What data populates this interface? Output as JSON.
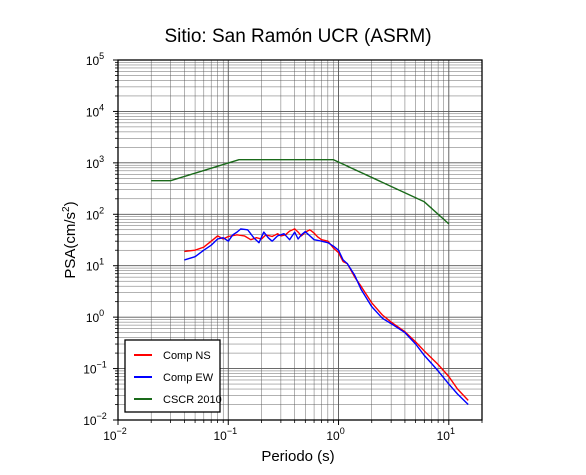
{
  "chart_data": {
    "type": "line",
    "title": "Sitio: San Ramón UCR (ASRM)",
    "xlabel": "Periodo (s)",
    "ylabel": "PSA(cm/s²)",
    "x_scale": "log",
    "y_scale": "log",
    "xlim": [
      0.01,
      20
    ],
    "ylim": [
      0.01,
      100000
    ],
    "grid": true,
    "legend_position": "bottom-left",
    "x_ticks": [
      {
        "value": 0.01,
        "base": "10",
        "exp": "−2"
      },
      {
        "value": 0.1,
        "base": "10",
        "exp": "−1"
      },
      {
        "value": 1,
        "base": "10",
        "exp": "0"
      },
      {
        "value": 10,
        "base": "10",
        "exp": "1"
      }
    ],
    "y_ticks": [
      {
        "value": 0.01,
        "base": "10",
        "exp": "−2"
      },
      {
        "value": 0.1,
        "base": "10",
        "exp": "−1"
      },
      {
        "value": 1,
        "base": "10",
        "exp": "0"
      },
      {
        "value": 10,
        "base": "10",
        "exp": "1"
      },
      {
        "value": 100,
        "base": "10",
        "exp": "2"
      },
      {
        "value": 1000,
        "base": "10",
        "exp": "3"
      },
      {
        "value": 10000,
        "base": "10",
        "exp": "4"
      },
      {
        "value": 100000,
        "base": "10",
        "exp": "5"
      }
    ],
    "series": [
      {
        "name": "Comp NS",
        "color": "#ff0000",
        "points": [
          [
            0.04,
            19
          ],
          [
            0.05,
            20
          ],
          [
            0.06,
            23
          ],
          [
            0.07,
            30
          ],
          [
            0.08,
            38
          ],
          [
            0.09,
            33
          ],
          [
            0.1,
            37
          ],
          [
            0.12,
            40
          ],
          [
            0.14,
            38
          ],
          [
            0.16,
            32
          ],
          [
            0.18,
            35
          ],
          [
            0.2,
            33
          ],
          [
            0.22,
            40
          ],
          [
            0.25,
            37
          ],
          [
            0.28,
            42
          ],
          [
            0.3,
            38
          ],
          [
            0.33,
            40
          ],
          [
            0.36,
            47
          ],
          [
            0.4,
            52
          ],
          [
            0.43,
            45
          ],
          [
            0.46,
            38
          ],
          [
            0.5,
            45
          ],
          [
            0.55,
            50
          ],
          [
            0.6,
            43
          ],
          [
            0.65,
            36
          ],
          [
            0.7,
            32
          ],
          [
            0.8,
            30
          ],
          [
            0.9,
            22
          ],
          [
            1.0,
            18
          ],
          [
            1.1,
            12
          ],
          [
            1.2,
            11
          ],
          [
            1.4,
            6
          ],
          [
            1.6,
            4
          ],
          [
            2.0,
            1.9
          ],
          [
            2.5,
            1.1
          ],
          [
            3.0,
            0.8
          ],
          [
            4.0,
            0.52
          ],
          [
            5.0,
            0.33
          ],
          [
            6.0,
            0.22
          ],
          [
            8.0,
            0.12
          ],
          [
            10.0,
            0.07
          ],
          [
            12.0,
            0.04
          ],
          [
            15.0,
            0.024
          ]
        ]
      },
      {
        "name": "Comp EW",
        "color": "#0000ff",
        "points": [
          [
            0.04,
            13
          ],
          [
            0.05,
            15
          ],
          [
            0.06,
            20
          ],
          [
            0.07,
            25
          ],
          [
            0.08,
            33
          ],
          [
            0.09,
            35
          ],
          [
            0.1,
            30
          ],
          [
            0.11,
            40
          ],
          [
            0.12,
            45
          ],
          [
            0.13,
            52
          ],
          [
            0.15,
            50
          ],
          [
            0.17,
            35
          ],
          [
            0.19,
            28
          ],
          [
            0.21,
            45
          ],
          [
            0.23,
            35
          ],
          [
            0.25,
            30
          ],
          [
            0.28,
            38
          ],
          [
            0.32,
            42
          ],
          [
            0.36,
            32
          ],
          [
            0.4,
            45
          ],
          [
            0.43,
            33
          ],
          [
            0.46,
            40
          ],
          [
            0.5,
            46
          ],
          [
            0.55,
            38
          ],
          [
            0.6,
            32
          ],
          [
            0.7,
            30
          ],
          [
            0.8,
            28
          ],
          [
            0.9,
            24
          ],
          [
            1.0,
            20
          ],
          [
            1.1,
            13
          ],
          [
            1.2,
            11
          ],
          [
            1.4,
            6.5
          ],
          [
            1.6,
            3.5
          ],
          [
            2.0,
            1.6
          ],
          [
            2.5,
            0.95
          ],
          [
            3.0,
            0.75
          ],
          [
            4.0,
            0.5
          ],
          [
            5.0,
            0.3
          ],
          [
            6.0,
            0.18
          ],
          [
            8.0,
            0.09
          ],
          [
            10.0,
            0.05
          ],
          [
            12.0,
            0.032
          ],
          [
            15.0,
            0.02
          ]
        ]
      },
      {
        "name": "CSCR 2010",
        "color": "#1a6a1a",
        "points": [
          [
            0.02,
            450
          ],
          [
            0.03,
            450
          ],
          [
            0.125,
            1150
          ],
          [
            0.9,
            1150
          ],
          [
            6.0,
            175
          ],
          [
            10.0,
            65
          ]
        ]
      }
    ]
  }
}
